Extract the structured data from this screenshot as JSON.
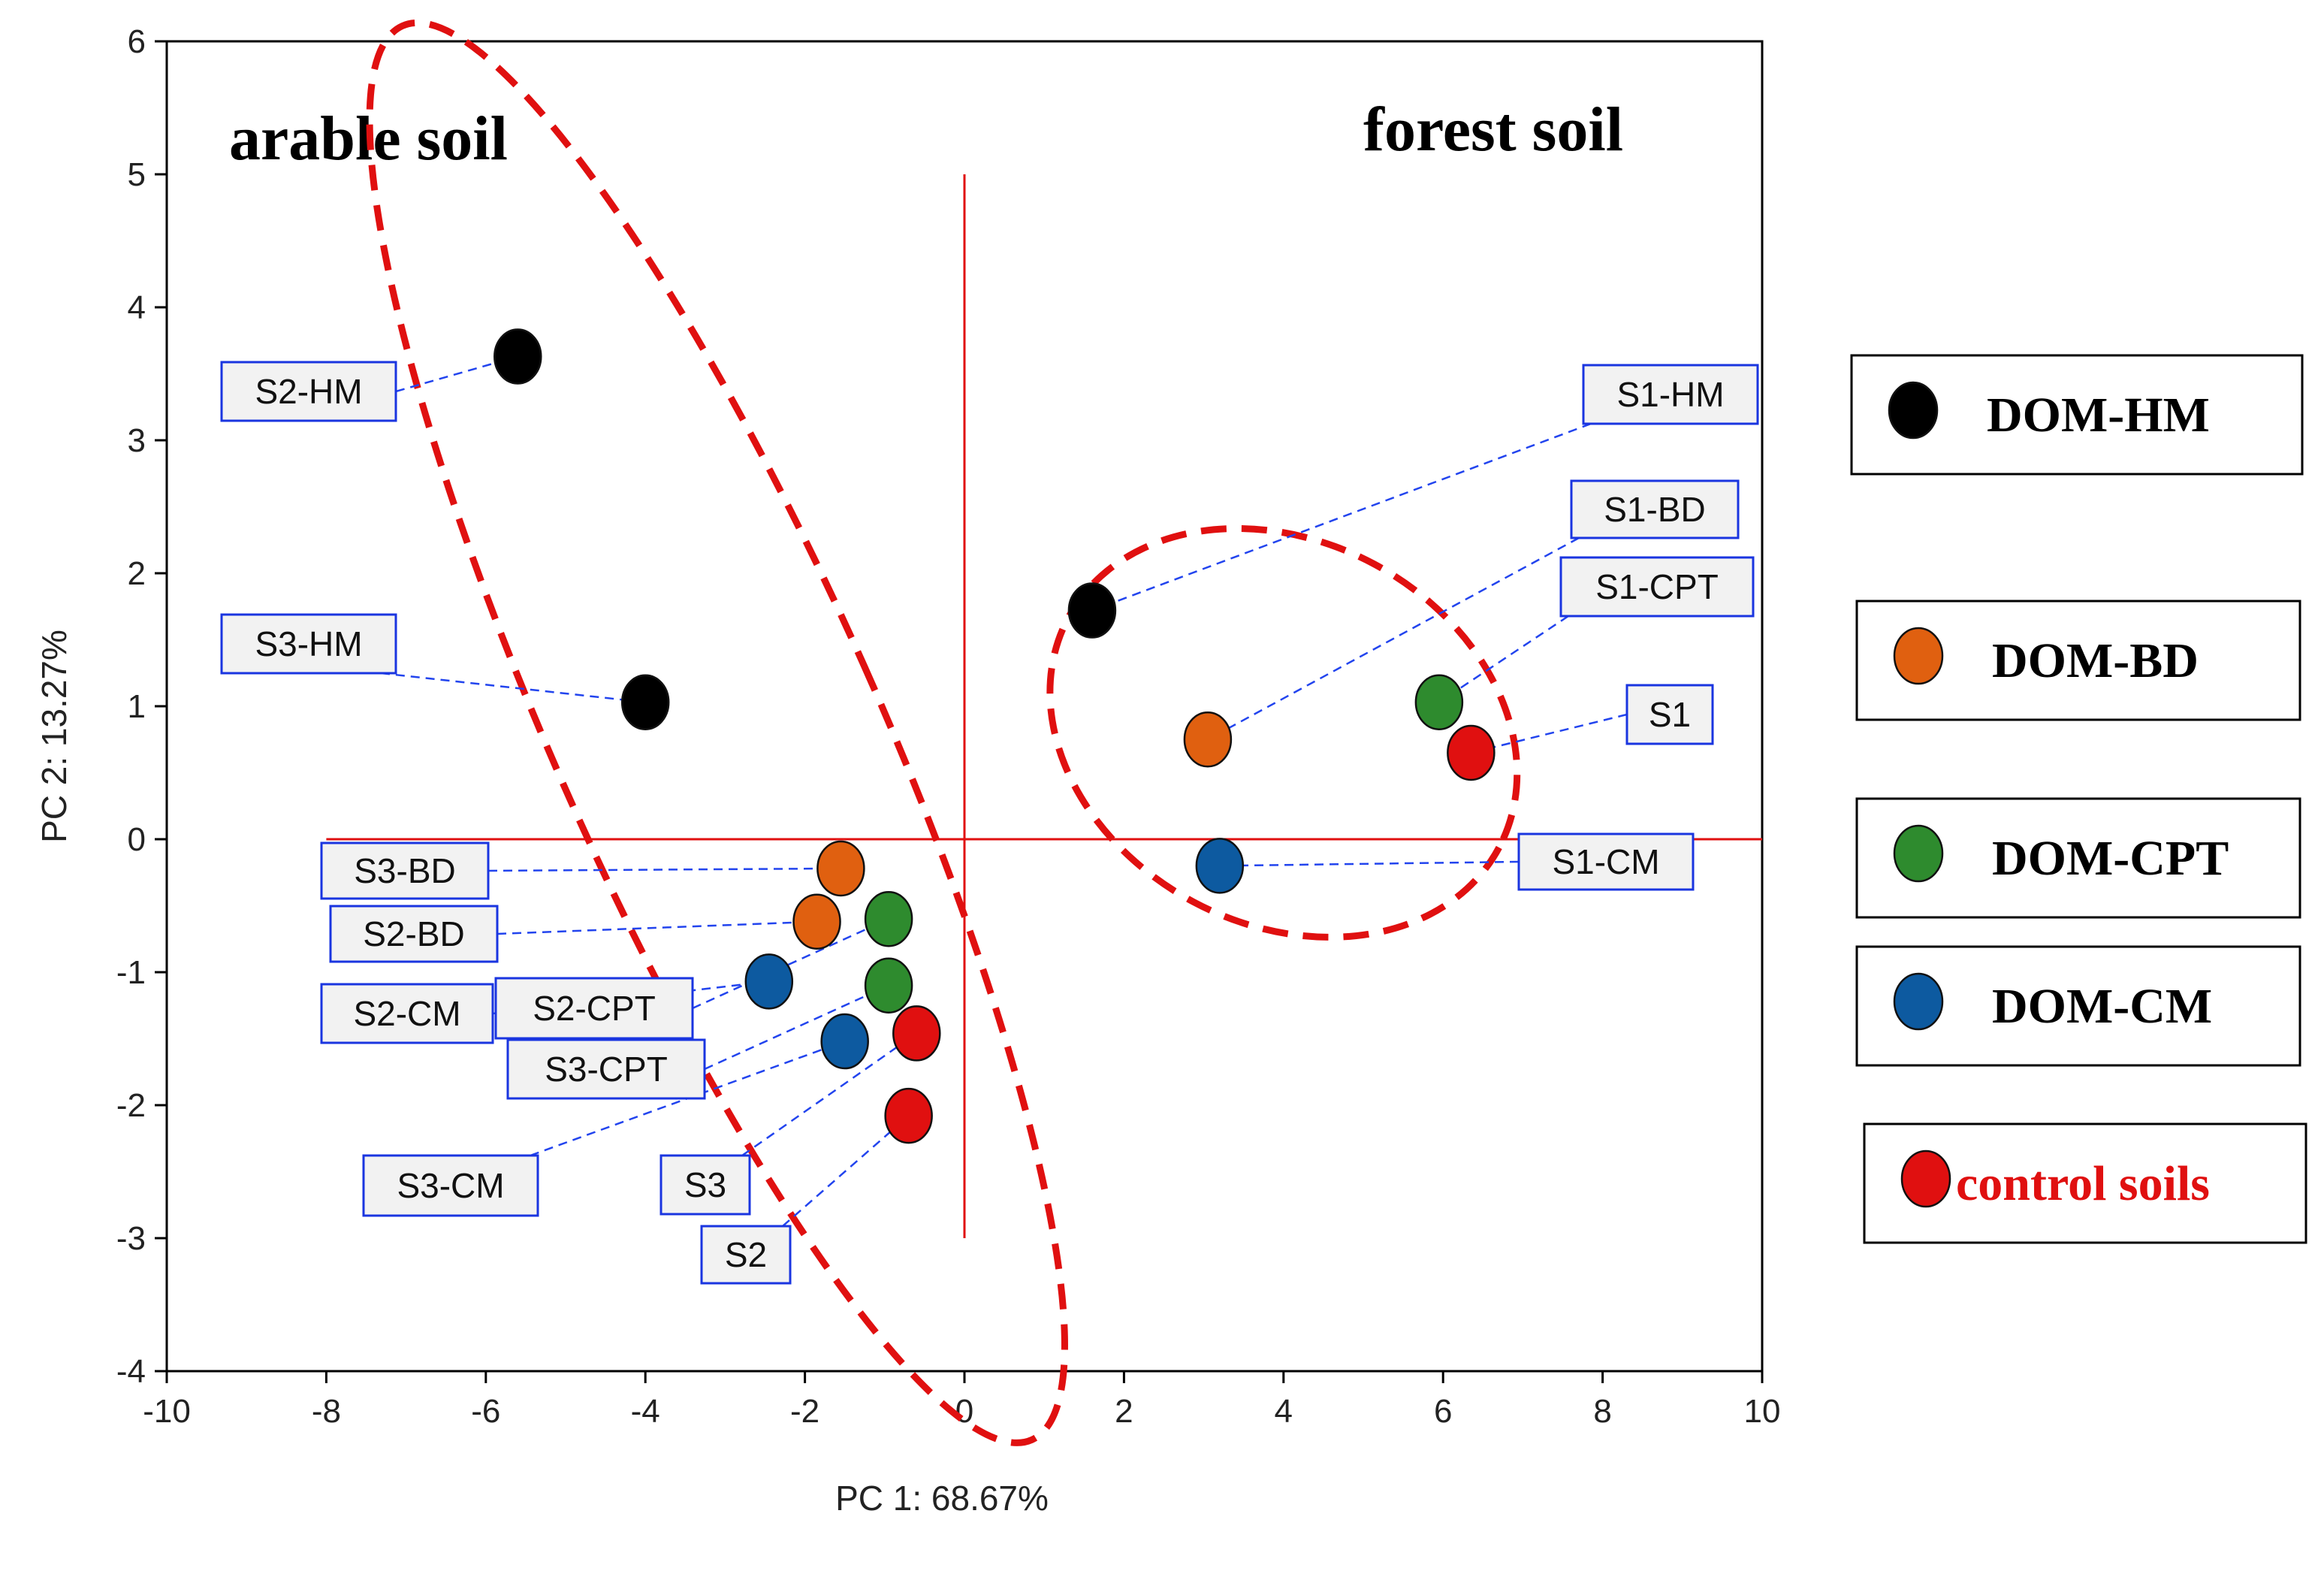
{
  "chart_data": {
    "type": "scatter",
    "title": "",
    "xlabel": "PC 1: 68.67%",
    "ylabel": "PC 2: 13.27%",
    "xlim": [
      -10,
      10
    ],
    "ylim": [
      -4,
      6
    ],
    "xticks": [
      -10,
      -8,
      -6,
      -4,
      -2,
      0,
      2,
      4,
      6,
      8,
      10
    ],
    "yticks": [
      -4,
      -3,
      -2,
      -1,
      0,
      1,
      2,
      3,
      4,
      5,
      6
    ],
    "grid": false,
    "annotations": {
      "left_region": "arable soil",
      "right_region": "forest soil"
    },
    "series": [
      {
        "name": "DOM-HM",
        "color": "#000000",
        "label_color": "#000000",
        "points": [
          {
            "label": "S2-HM",
            "x": -5.6,
            "y": 3.63
          },
          {
            "label": "S3-HM",
            "x": -4.0,
            "y": 1.03
          },
          {
            "label": "S1-HM",
            "x": 1.6,
            "y": 1.72
          }
        ]
      },
      {
        "name": "DOM-BD",
        "color": "#e06010",
        "label_color": "#000000",
        "points": [
          {
            "label": "S3-BD",
            "x": -1.55,
            "y": -0.22
          },
          {
            "label": "S2-BD",
            "x": -1.85,
            "y": -0.62
          },
          {
            "label": "S1-BD",
            "x": 3.05,
            "y": 0.75
          }
        ]
      },
      {
        "name": "DOM-CPT",
        "color": "#2e8b2e",
        "label_color": "#000000",
        "points": [
          {
            "label": "S2-CPT",
            "x": -0.95,
            "y": -0.6
          },
          {
            "label": "S3-CPT",
            "x": -0.95,
            "y": -1.1
          },
          {
            "label": "S1-CPT",
            "x": 5.95,
            "y": 1.03
          }
        ]
      },
      {
        "name": "DOM-CM",
        "color": "#0d5aa0",
        "label_color": "#000000",
        "points": [
          {
            "label": "S2-CM",
            "x": -2.45,
            "y": -1.07
          },
          {
            "label": "S3-CM",
            "x": -1.5,
            "y": -1.52
          },
          {
            "label": "S1-CM",
            "x": 3.2,
            "y": -0.2
          }
        ]
      },
      {
        "name": "control soils",
        "color": "#e01010",
        "label_color": "#e01010",
        "points": [
          {
            "label": "S3",
            "x": -0.6,
            "y": -1.46
          },
          {
            "label": "S2",
            "x": -0.7,
            "y": -2.08
          },
          {
            "label": "S1",
            "x": 6.35,
            "y": 0.65
          }
        ]
      }
    ]
  }
}
